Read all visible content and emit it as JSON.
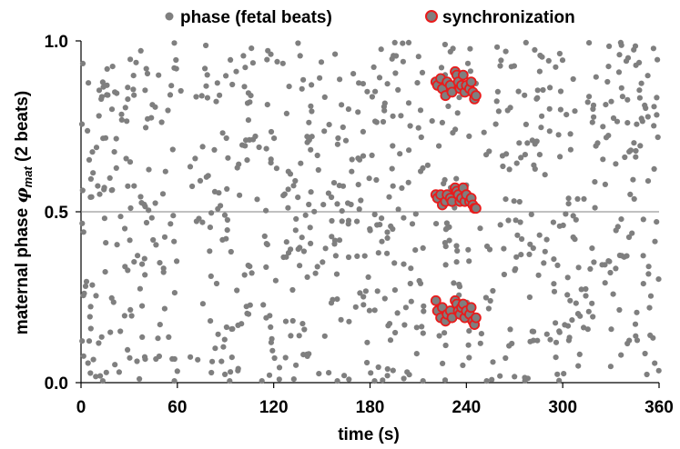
{
  "chart_data": {
    "type": "scatter",
    "xlabel": "time (s)",
    "ylabel_prefix": "maternal phase ",
    "ylabel_symbol": "φ",
    "ylabel_subscript": "mat",
    "ylabel_suffix": " (2 beats)",
    "xlim": [
      0,
      360
    ],
    "ylim": [
      0,
      1
    ],
    "x_ticks": [
      0,
      60,
      120,
      180,
      240,
      300,
      360
    ],
    "y_ticks": [
      0,
      0.5,
      1
    ],
    "x_tick_labels": [
      "0",
      "60",
      "120",
      "180",
      "240",
      "300",
      "360"
    ],
    "y_tick_labels": [
      "0.0",
      "0.5",
      "1.0"
    ],
    "reference_line_y": 0.5,
    "legend_position": "top",
    "colors": {
      "phase_points": "#7f7f7f",
      "sync_fill": "#7f7f7f",
      "sync_edge": "#e81c1c",
      "axis": "#000000",
      "reference_line": "#808080"
    },
    "series": [
      {
        "name": "phase (fetal beats)",
        "description_of_pattern": "dense phase points filling time 0-360 s, phase 0-1, forming descending diagonal striations",
        "pattern": {
          "n_points_approx": 900,
          "striation_slope_per_s": -0.0012,
          "gap_regions": [
            [
              60,
              68
            ],
            [
              215,
              222
            ],
            [
              244,
              250
            ]
          ]
        }
      },
      {
        "name": "synchronization",
        "clusters": [
          {
            "x_range": [
              221,
              246
            ],
            "y_center": 0.875
          },
          {
            "x_range": [
              221,
              246
            ],
            "y_center": 0.545
          },
          {
            "x_range": [
              221,
              246
            ],
            "y_center": 0.205
          }
        ],
        "points": [
          [
            221,
            0.88
          ],
          [
            222,
            0.87
          ],
          [
            224,
            0.89
          ],
          [
            225,
            0.86
          ],
          [
            227,
            0.84
          ],
          [
            228,
            0.88
          ],
          [
            230,
            0.87
          ],
          [
            231,
            0.85
          ],
          [
            233,
            0.91
          ],
          [
            234,
            0.9
          ],
          [
            235,
            0.88
          ],
          [
            236,
            0.86
          ],
          [
            237,
            0.87
          ],
          [
            238,
            0.9
          ],
          [
            239,
            0.85
          ],
          [
            240,
            0.87
          ],
          [
            242,
            0.86
          ],
          [
            243,
            0.88
          ],
          [
            244,
            0.85
          ],
          [
            245,
            0.83
          ],
          [
            246,
            0.84
          ],
          [
            221,
            0.55
          ],
          [
            222,
            0.54
          ],
          [
            224,
            0.55
          ],
          [
            225,
            0.52
          ],
          [
            227,
            0.53
          ],
          [
            228,
            0.55
          ],
          [
            230,
            0.54
          ],
          [
            231,
            0.53
          ],
          [
            233,
            0.57
          ],
          [
            234,
            0.56
          ],
          [
            235,
            0.55
          ],
          [
            236,
            0.53
          ],
          [
            237,
            0.54
          ],
          [
            238,
            0.57
          ],
          [
            239,
            0.53
          ],
          [
            240,
            0.55
          ],
          [
            242,
            0.53
          ],
          [
            243,
            0.54
          ],
          [
            244,
            0.52
          ],
          [
            245,
            0.51
          ],
          [
            246,
            0.51
          ],
          [
            221,
            0.24
          ],
          [
            222,
            0.21
          ],
          [
            224,
            0.19
          ],
          [
            225,
            0.22
          ],
          [
            227,
            0.18
          ],
          [
            228,
            0.2
          ],
          [
            230,
            0.21
          ],
          [
            231,
            0.19
          ],
          [
            233,
            0.24
          ],
          [
            234,
            0.23
          ],
          [
            235,
            0.21
          ],
          [
            236,
            0.2
          ],
          [
            237,
            0.22
          ],
          [
            238,
            0.23
          ],
          [
            239,
            0.19
          ],
          [
            240,
            0.21
          ],
          [
            242,
            0.2
          ],
          [
            243,
            0.22
          ],
          [
            244,
            0.18
          ],
          [
            245,
            0.17
          ],
          [
            246,
            0.19
          ]
        ]
      }
    ]
  }
}
